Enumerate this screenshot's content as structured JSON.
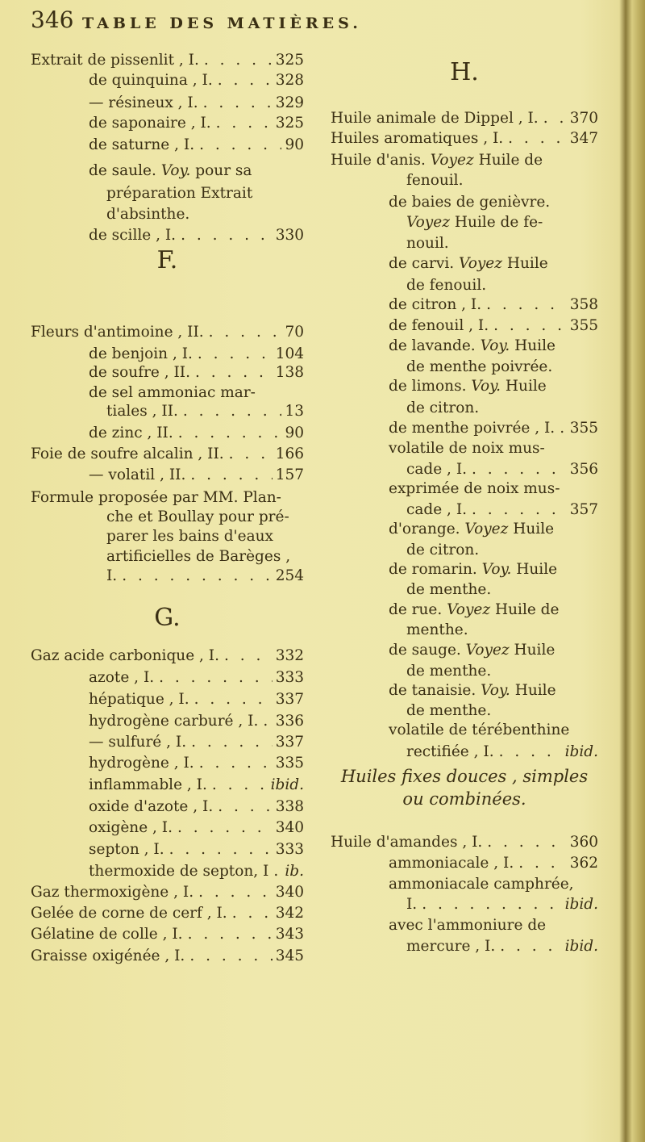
{
  "header": {
    "page_number": "346",
    "title": "TABLE DES MATIÈRES."
  },
  "left_column": [
    {
      "kind": "main",
      "text": "Extrait de pissenlit , I.",
      "page": "325"
    },
    {
      "kind": "sub",
      "text": "de quinquina , I.",
      "page": "328"
    },
    {
      "kind": "sub",
      "text": "— résineux , I.",
      "page": "329"
    },
    {
      "kind": "sub",
      "text": "de saponaire , I.",
      "page": "325"
    },
    {
      "kind": "sub",
      "text": "de saturne , I.",
      "page": "90"
    },
    {
      "kind": "sub",
      "text": "de saule.",
      "italic": "Voy.",
      "post": "pour sa"
    },
    {
      "kind": "cont",
      "text": "préparation  Extrait"
    },
    {
      "kind": "cont",
      "text": "d'absinthe."
    },
    {
      "kind": "sub",
      "text": "de scille , I.",
      "page": "330"
    },
    {
      "kind": "letter",
      "text": "F."
    },
    {
      "kind": "main",
      "text": "Fleurs d'antimoine , II.",
      "page": "70"
    },
    {
      "kind": "sub",
      "text": "de benjoin , I.",
      "page": "104"
    },
    {
      "kind": "sub",
      "text": "de soufre , II.",
      "page": "138"
    },
    {
      "kind": "sub",
      "text": "de sel ammoniac mar-"
    },
    {
      "kind": "cont",
      "text": "tiales , II.",
      "page": "13"
    },
    {
      "kind": "sub",
      "text": "de zinc , II.",
      "page": "90"
    },
    {
      "kind": "main",
      "text": "Foie de soufre alcalin , II.",
      "page": "166"
    },
    {
      "kind": "sub",
      "text": "— volatil , II.",
      "page": "157"
    },
    {
      "kind": "main",
      "text": "Formule proposée par MM. Plan-"
    },
    {
      "kind": "cont",
      "text": "che et Boullay pour pré-"
    },
    {
      "kind": "cont",
      "text": "parer les bains d'eaux"
    },
    {
      "kind": "cont",
      "text": "artificielles de Barèges ,"
    },
    {
      "kind": "cont",
      "text": "I.",
      "page": "254"
    },
    {
      "kind": "letter",
      "text": "G."
    },
    {
      "kind": "main",
      "text": "Gaz acide carbonique , I.",
      "page": "332"
    },
    {
      "kind": "sub",
      "text": "azote , I.",
      "page": "333"
    },
    {
      "kind": "sub",
      "text": "hépatique , I.",
      "page": "337"
    },
    {
      "kind": "sub",
      "text": "hydrogène carburé , I.",
      "page": "336"
    },
    {
      "kind": "sub",
      "text": "— sulfuré , I.",
      "page": "337"
    },
    {
      "kind": "sub",
      "text": "hydrogène , I.",
      "page": "335"
    },
    {
      "kind": "sub",
      "text": "inflammable , I.",
      "page": "ibid.",
      "page_italic": true
    },
    {
      "kind": "sub",
      "text": "oxide d'azote , I.",
      "page": "338"
    },
    {
      "kind": "sub",
      "text": "oxigène , I.",
      "page": "340"
    },
    {
      "kind": "sub",
      "text": "septon , I.",
      "page": "333"
    },
    {
      "kind": "sub",
      "text": "thermoxide de septon, I",
      "page": "ib.",
      "page_italic": true
    },
    {
      "kind": "main",
      "text": "Gaz thermoxigène , I.",
      "page": "340"
    },
    {
      "kind": "main",
      "text": "Gelée de corne de cerf , I.",
      "page": "342"
    },
    {
      "kind": "main",
      "text": "Gélatine de colle , I.",
      "page": "343"
    },
    {
      "kind": "main",
      "text": "Graisse oxigénée , I.",
      "page": "345"
    }
  ],
  "right_column": [
    {
      "kind": "letter",
      "text": "H."
    },
    {
      "kind": "main",
      "text": "Huile animale de Dippel , I.",
      "page": "370"
    },
    {
      "kind": "main",
      "text": "Huiles aromatiques , I.",
      "page": "347"
    },
    {
      "kind": "main",
      "text": "Huile d'anis.",
      "italic": "Voyez",
      "post": "Huile de"
    },
    {
      "kind": "cont",
      "text": "fenouil."
    },
    {
      "kind": "sub",
      "text": "de baies de genièvre."
    },
    {
      "kind": "cont",
      "text": "",
      "italic": "Voyez",
      "post": "Huile de fe-"
    },
    {
      "kind": "cont",
      "text": "nouil."
    },
    {
      "kind": "sub",
      "text": "de carvi.",
      "italic": "Voyez",
      "post": "Huile"
    },
    {
      "kind": "cont",
      "text": "de fenouil."
    },
    {
      "kind": "sub",
      "text": "de citron , I.",
      "page": "358"
    },
    {
      "kind": "sub",
      "text": "de fenouil , I.",
      "page": "355"
    },
    {
      "kind": "sub",
      "text": "de lavande.",
      "italic": "Voy.",
      "post": "Huile"
    },
    {
      "kind": "cont",
      "text": "de menthe poivrée."
    },
    {
      "kind": "sub",
      "text": "de limons.",
      "italic": "Voy.",
      "post": "Huile"
    },
    {
      "kind": "cont",
      "text": "de citron."
    },
    {
      "kind": "sub",
      "text": "de menthe poivrée , I.",
      "page": "355"
    },
    {
      "kind": "sub",
      "text": "volatile de noix mus-"
    },
    {
      "kind": "cont",
      "text": "cade , I.",
      "page": "356"
    },
    {
      "kind": "sub",
      "text": "exprimée de noix mus-"
    },
    {
      "kind": "cont",
      "text": "cade , I.",
      "page": "357"
    },
    {
      "kind": "sub",
      "text": "d'orange.",
      "italic": "Voyez",
      "post": "Huile"
    },
    {
      "kind": "cont",
      "text": "de citron."
    },
    {
      "kind": "sub",
      "text": "de romarin.",
      "italic": "Voy.",
      "post": "Huile"
    },
    {
      "kind": "cont",
      "text": "de menthe."
    },
    {
      "kind": "sub",
      "text": "de rue.",
      "italic": "Voyez",
      "post": "Huile de"
    },
    {
      "kind": "cont",
      "text": "menthe."
    },
    {
      "kind": "sub",
      "text": "de sauge.",
      "italic": "Voyez",
      "post": "Huile"
    },
    {
      "kind": "cont",
      "text": "de menthe."
    },
    {
      "kind": "sub",
      "text": "de tanaisie.",
      "italic": "Voy.",
      "post": "Huile"
    },
    {
      "kind": "cont",
      "text": "de menthe."
    },
    {
      "kind": "sub",
      "text": "volatile de térébenthine"
    },
    {
      "kind": "cont",
      "text": "rectifiée , I.",
      "page": "ibid.",
      "page_italic": true
    },
    {
      "kind": "heading",
      "text": "Huiles fixes douces , simples"
    },
    {
      "kind": "heading",
      "text": "ou combinées."
    },
    {
      "kind": "main",
      "text": "Huile d'amandes , I.",
      "page": "360"
    },
    {
      "kind": "sub",
      "text": "ammoniacale , I.",
      "page": "362"
    },
    {
      "kind": "sub",
      "text": "ammoniacale camphrée,"
    },
    {
      "kind": "cont",
      "text": "I.",
      "page": "ibid.",
      "page_italic": true
    },
    {
      "kind": "sub",
      "text": "avec l'ammoniure de"
    },
    {
      "kind": "cont",
      "text": "mercure , I.",
      "page": "ibid.",
      "page_italic": true
    }
  ]
}
